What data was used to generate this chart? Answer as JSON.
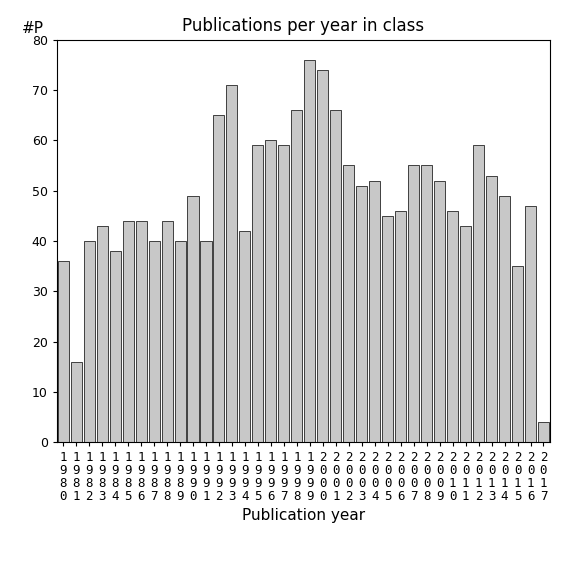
{
  "title": "Publications per year in class",
  "xlabel": "Publication year",
  "ylabel_text": "#P",
  "years": [
    1980,
    1981,
    1982,
    1983,
    1984,
    1985,
    1986,
    1987,
    1988,
    1989,
    1990,
    1991,
    1992,
    1993,
    1994,
    1995,
    1996,
    1997,
    1998,
    1999,
    2000,
    2001,
    2002,
    2003,
    2004,
    2005,
    2006,
    2007,
    2008,
    2009,
    2010,
    2011,
    2012,
    2013,
    2014,
    2015,
    2016,
    2017
  ],
  "values": [
    36,
    16,
    40,
    43,
    38,
    44,
    44,
    40,
    44,
    40,
    49,
    40,
    65,
    71,
    42,
    59,
    60,
    59,
    66,
    76,
    74,
    66,
    55,
    51,
    52,
    45,
    46,
    55,
    55,
    52,
    46,
    43,
    59,
    53,
    49,
    35,
    47,
    4
  ],
  "bar_color": "#c8c8c8",
  "bar_edgecolor": "#000000",
  "ylim": [
    0,
    80
  ],
  "yticks": [
    0,
    10,
    20,
    30,
    40,
    50,
    60,
    70,
    80
  ],
  "background_color": "#ffffff",
  "title_fontsize": 12,
  "axis_label_fontsize": 11,
  "tick_fontsize": 9
}
